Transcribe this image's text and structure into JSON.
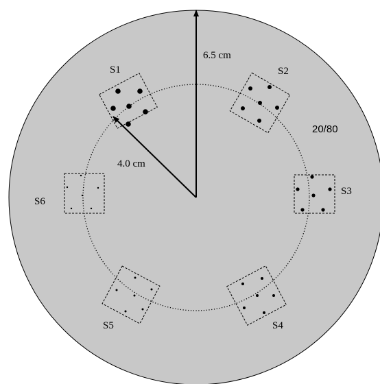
{
  "diagram": {
    "outer_radius_label": "6.5 cm",
    "inner_radius_label": "4.0 cm",
    "ratio_label": "20/80",
    "sites": [
      {
        "id": "s1",
        "label": "S1",
        "dot_size": "large"
      },
      {
        "id": "s2",
        "label": "S2",
        "dot_size": "medium"
      },
      {
        "id": "s3",
        "label": "S3",
        "dot_size": "medium"
      },
      {
        "id": "s4",
        "label": "S4",
        "dot_size": "small"
      },
      {
        "id": "s5",
        "label": "S5",
        "dot_size": "tiny"
      },
      {
        "id": "s6",
        "label": "S6",
        "dot_size": "tiny"
      }
    ]
  },
  "colors": {
    "disc_fill": "#c8c8c8",
    "outline": "#000000",
    "background": "#ffffff"
  }
}
